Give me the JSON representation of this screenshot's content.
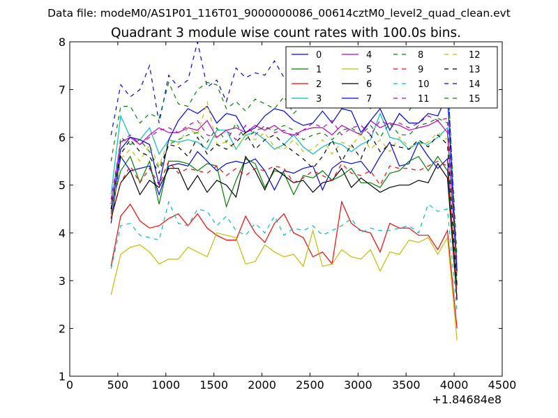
{
  "figure": {
    "suptitle": "Data file: modeM0/AS1P01_116T01_9000000086_00614cztM0_level2_quad_clean.evt",
    "offset_label": "+1.84684e8"
  },
  "chart_data": {
    "type": "line",
    "title": "Quadrant 3 module wise count rates with 100.0s bins.",
    "xlabel": "",
    "ylabel": "",
    "xlim": [
      0,
      4500
    ],
    "ylim": [
      1,
      8
    ],
    "xticks": [
      0,
      500,
      1000,
      1500,
      2000,
      2500,
      3000,
      3500,
      4000,
      4500
    ],
    "yticks": [
      1,
      2,
      3,
      4,
      5,
      6,
      7,
      8
    ],
    "grid": false,
    "legend_placement": "top-right",
    "x": [
      430,
      530,
      630,
      730,
      830,
      930,
      1030,
      1130,
      1230,
      1330,
      1430,
      1530,
      1630,
      1730,
      1830,
      1930,
      2030,
      2130,
      2230,
      2330,
      2430,
      2530,
      2630,
      2730,
      2830,
      2930,
      3030,
      3130,
      3230,
      3330,
      3430,
      3530,
      3630,
      3730,
      3830,
      3930,
      4030
    ],
    "series": [
      {
        "name": "0",
        "color": "#0000ff",
        "dash": "solid",
        "values": [
          4.2,
          5.6,
          5.3,
          5.35,
          5.4,
          4.8,
          5.4,
          5.45,
          5.4,
          5.7,
          5.5,
          5.3,
          5.45,
          5.5,
          5.45,
          5.55,
          5.3,
          4.9,
          5.3,
          5.25,
          5.35,
          5.4,
          4.9,
          5.35,
          5.5,
          5.45,
          5.5,
          5.25,
          5.6,
          5.9,
          5.4,
          5.45,
          5.9,
          5.6,
          5.35,
          5.55,
          2.6
        ]
      },
      {
        "name": "1",
        "color": "#008000",
        "dash": "solid",
        "values": [
          4.5,
          5.3,
          5.6,
          5.05,
          5.5,
          4.6,
          5.5,
          5.5,
          5.45,
          5.3,
          5.45,
          5.4,
          4.55,
          5.1,
          5.55,
          5.45,
          4.95,
          5.3,
          5.25,
          4.8,
          5.2,
          5.15,
          5.3,
          5.1,
          5.2,
          5.35,
          5.05,
          5.05,
          4.95,
          5.25,
          5.3,
          5.5,
          5.6,
          5.3,
          5.6,
          5.3,
          2.9
        ]
      },
      {
        "name": "2",
        "color": "#ff0000",
        "dash": "solid",
        "values": [
          3.3,
          4.35,
          4.6,
          4.25,
          4.1,
          4.15,
          4.3,
          4.4,
          4.15,
          4.4,
          4.1,
          3.95,
          3.85,
          3.85,
          4.35,
          4.0,
          3.8,
          4.2,
          4.4,
          4.0,
          3.9,
          3.5,
          3.6,
          3.35,
          4.65,
          4.2,
          4.05,
          4.0,
          3.6,
          4.2,
          4.1,
          4.1,
          3.95,
          3.95,
          3.65,
          4.05,
          2.0
        ]
      },
      {
        "name": "3",
        "color": "#00bfbf",
        "dash": "solid",
        "values": [
          4.8,
          6.45,
          6.0,
          5.95,
          6.2,
          5.65,
          5.95,
          5.9,
          5.95,
          5.9,
          5.75,
          6.15,
          6.15,
          5.75,
          6.05,
          6.1,
          5.95,
          5.75,
          5.85,
          6.05,
          5.8,
          5.65,
          5.8,
          5.9,
          5.85,
          5.7,
          5.85,
          5.95,
          6.5,
          6.0,
          5.95,
          5.75,
          5.9,
          5.85,
          6.0,
          6.2,
          3.1
        ]
      },
      {
        "name": "4",
        "color": "#bf00bf",
        "dash": "solid",
        "values": [
          4.6,
          5.9,
          6.0,
          5.85,
          6.05,
          6.2,
          6.1,
          6.1,
          6.2,
          6.15,
          6.35,
          6.0,
          6.15,
          6.2,
          6.1,
          6.25,
          6.15,
          6.25,
          6.1,
          6.05,
          6.15,
          6.2,
          6.2,
          6.05,
          6.25,
          6.15,
          6.05,
          6.35,
          6.2,
          6.3,
          6.25,
          6.15,
          6.2,
          6.25,
          6.35,
          6.1,
          3.2
        ]
      },
      {
        "name": "5",
        "color": "#bfbf00",
        "dash": "solid",
        "values": [
          2.7,
          3.55,
          3.7,
          3.75,
          3.6,
          3.35,
          3.45,
          3.45,
          3.7,
          3.6,
          3.5,
          4.0,
          3.95,
          3.9,
          3.35,
          3.4,
          3.75,
          3.6,
          3.5,
          3.55,
          3.3,
          4.05,
          3.3,
          3.35,
          3.65,
          3.5,
          3.45,
          3.65,
          3.2,
          3.6,
          3.55,
          3.85,
          3.8,
          3.9,
          3.55,
          3.9,
          1.75
        ]
      },
      {
        "name": "6",
        "color": "#000000",
        "dash": "solid",
        "values": [
          4.3,
          5.05,
          5.3,
          4.8,
          5.1,
          4.95,
          5.35,
          5.35,
          4.9,
          5.2,
          4.85,
          5.1,
          5.0,
          4.75,
          5.6,
          5.3,
          4.9,
          5.35,
          5.2,
          5.05,
          5.1,
          4.85,
          5.05,
          5.1,
          5.35,
          4.95,
          5.15,
          5.0,
          4.85,
          4.95,
          5.0,
          5.0,
          5.1,
          5.05,
          5.45,
          5.15,
          2.6
        ]
      },
      {
        "name": "7",
        "color": "#0000ff",
        "dash": "solid",
        "values": [
          4.4,
          5.75,
          6.0,
          5.95,
          5.85,
          5.0,
          5.95,
          6.35,
          6.6,
          6.5,
          6.65,
          6.3,
          6.5,
          6.45,
          6.1,
          6.2,
          6.45,
          6.6,
          6.55,
          6.35,
          6.25,
          6.3,
          6.55,
          6.3,
          6.6,
          6.55,
          6.1,
          6.35,
          6.6,
          6.15,
          6.5,
          6.3,
          6.3,
          6.5,
          6.45,
          6.9,
          3.2
        ]
      },
      {
        "name": "8",
        "color": "#008000",
        "dash": "dashed",
        "values": [
          4.3,
          6.0,
          5.85,
          5.95,
          5.7,
          5.35,
          5.85,
          5.95,
          6.05,
          6.1,
          5.9,
          6.2,
          5.9,
          6.3,
          5.95,
          6.15,
          6.2,
          6.15,
          6.25,
          6.15,
          5.95,
          6.05,
          6.1,
          5.95,
          6.15,
          6.2,
          6.05,
          6.25,
          6.0,
          6.3,
          6.05,
          6.05,
          6.25,
          6.3,
          6.4,
          6.3,
          3.15
        ]
      },
      {
        "name": "9",
        "color": "#ff0000",
        "dash": "dashed",
        "values": [
          4.3,
          5.05,
          5.4,
          5.05,
          5.35,
          5.0,
          5.5,
          5.25,
          5.35,
          5.3,
          5.25,
          5.4,
          5.2,
          5.35,
          5.2,
          5.35,
          5.3,
          5.4,
          5.35,
          5.05,
          5.15,
          5.3,
          5.2,
          5.1,
          5.45,
          5.25,
          5.2,
          5.3,
          5.0,
          5.4,
          5.35,
          5.35,
          5.3,
          5.4,
          5.5,
          5.4,
          2.7
        ]
      },
      {
        "name": "10",
        "color": "#00bfbf",
        "dash": "dashed",
        "values": [
          3.25,
          4.15,
          4.2,
          3.95,
          3.9,
          3.85,
          4.65,
          4.2,
          4.15,
          4.5,
          4.45,
          4.15,
          4.35,
          4.05,
          3.95,
          4.2,
          4.0,
          4.35,
          3.95,
          4.1,
          4.05,
          4.15,
          3.95,
          4.05,
          4.15,
          4.3,
          4.0,
          4.1,
          4.05,
          4.05,
          4.1,
          4.15,
          4.0,
          4.6,
          4.45,
          4.5,
          2.35
        ]
      },
      {
        "name": "11",
        "color": "#bf00bf",
        "dash": "dashed",
        "values": [
          4.7,
          5.9,
          6.05,
          5.85,
          6.0,
          6.15,
          6.2,
          6.1,
          6.25,
          6.35,
          6.05,
          6.0,
          6.15,
          5.95,
          6.25,
          6.05,
          6.25,
          6.1,
          6.15,
          6.0,
          6.15,
          6.3,
          6.2,
          6.35,
          6.05,
          6.2,
          6.25,
          6.05,
          6.35,
          6.25,
          6.3,
          6.2,
          6.3,
          6.45,
          6.35,
          6.4,
          3.35
        ]
      },
      {
        "name": "12",
        "color": "#bfbf00",
        "dash": "dashed",
        "values": [
          4.35,
          5.55,
          5.75,
          5.5,
          5.85,
          5.4,
          5.95,
          5.85,
          6.2,
          6.05,
          6.75,
          5.85,
          5.9,
          5.75,
          6.05,
          5.95,
          6.1,
          5.8,
          5.75,
          5.95,
          5.7,
          5.75,
          5.95,
          5.65,
          5.9,
          5.8,
          6.1,
          5.75,
          5.95,
          5.7,
          6.0,
          5.8,
          5.85,
          5.9,
          6.1,
          5.95,
          3.1
        ]
      },
      {
        "name": "13",
        "color": "#000000",
        "dash": "dashed",
        "values": [
          4.5,
          5.65,
          5.95,
          5.7,
          5.6,
          5.25,
          5.85,
          5.8,
          5.6,
          6.0,
          5.65,
          5.85,
          5.75,
          5.9,
          6.1,
          5.75,
          5.95,
          6.05,
          5.85,
          5.7,
          5.55,
          5.35,
          5.6,
          5.95,
          5.5,
          5.85,
          5.55,
          6.05,
          5.7,
          5.85,
          5.8,
          5.75,
          5.95,
          5.8,
          6.05,
          5.85,
          2.9
        ]
      },
      {
        "name": "14",
        "color": "#0000ff",
        "dash": "dashed",
        "values": [
          6.05,
          7.1,
          6.85,
          7.0,
          7.5,
          6.3,
          7.3,
          7.05,
          7.2,
          8.0,
          7.05,
          7.2,
          6.75,
          7.45,
          7.25,
          7.35,
          7.3,
          7.6,
          7.25,
          7.05,
          7.15,
          7.3,
          7.0,
          7.55,
          7.1,
          6.65,
          7.25,
          7.3,
          7.05,
          7.15,
          7.25,
          7.4,
          7.2,
          7.35,
          7.1,
          7.35,
          3.2
        ]
      },
      {
        "name": "15",
        "color": "#008000",
        "dash": "dashed",
        "values": [
          5.5,
          6.65,
          6.65,
          6.3,
          6.5,
          6.4,
          7.15,
          6.7,
          6.65,
          7.0,
          7.15,
          7.1,
          6.6,
          6.75,
          6.55,
          6.8,
          6.7,
          6.6,
          6.85,
          6.5,
          6.7,
          6.65,
          7.0,
          6.8,
          6.6,
          6.9,
          6.75,
          6.6,
          6.95,
          6.7,
          6.85,
          6.55,
          6.9,
          7.0,
          6.75,
          7.35,
          3.5
        ]
      }
    ]
  }
}
